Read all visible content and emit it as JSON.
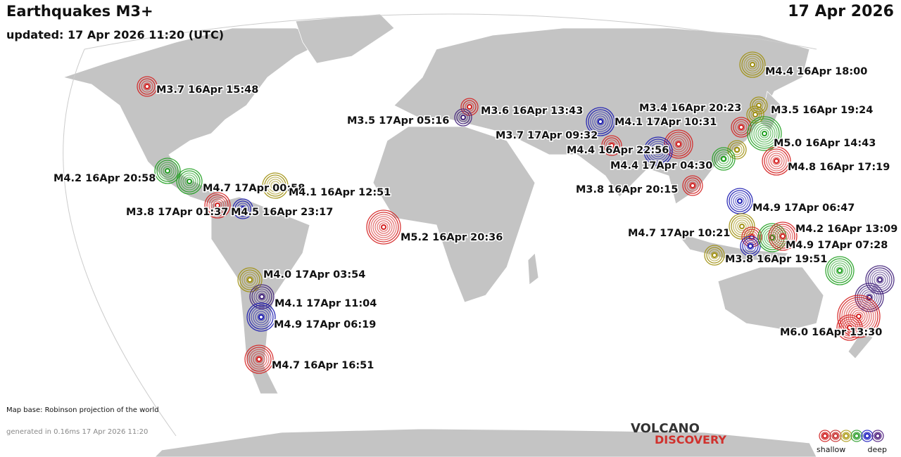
{
  "header": {
    "title": "Earthquakes M3+",
    "updated": "updated: 17 Apr 2026 11:20 (UTC)",
    "date": "17 Apr 2026"
  },
  "footer": {
    "map_base": "Map base: Robinson projection of the world",
    "generated": "generated in 0.16ms 17 Apr 2026 11:20"
  },
  "logo": {
    "line1": "VOLCANO",
    "line2": "DISCOVERY"
  },
  "legend": {
    "shallow": "shallow",
    "deep": "deep",
    "colors": [
      "#d02020",
      "#c83030",
      "#b0a020",
      "#30a030",
      "#2020c0",
      "#502080"
    ]
  },
  "depth_colors": {
    "red": "#d42020",
    "olive": "#a09010",
    "green": "#20a020",
    "blue": "#1a1ab0",
    "purple": "#40207a"
  },
  "quakes": [
    {
      "label": "M3.7 16Apr 15:48",
      "depth": "red"
    },
    {
      "label": "M4.2 16Apr 20:58",
      "depth": "green"
    },
    {
      "label": "M4.7 17Apr 00:58",
      "depth": "green"
    },
    {
      "label": "M4.1 16Apr 12:51",
      "depth": "olive"
    },
    {
      "label": "M3.8 17Apr 01:37",
      "depth": "red"
    },
    {
      "label": "M4.5 16Apr 23:17",
      "depth": "blue"
    },
    {
      "label": "M5.2 16Apr 20:36",
      "depth": "red"
    },
    {
      "label": "M4.0 17Apr 03:54",
      "depth": "olive"
    },
    {
      "label": "M4.1 17Apr 11:04",
      "depth": "purple"
    },
    {
      "label": "M4.9 17Apr 06:19",
      "depth": "blue"
    },
    {
      "label": "M4.7 16Apr 16:51",
      "depth": "red"
    },
    {
      "label": "M3.6 16Apr 13:43",
      "depth": "red"
    },
    {
      "label": "M3.5 17Apr 05:16",
      "depth": "purple"
    },
    {
      "label": "M4.1 17Apr 10:31",
      "depth": "blue"
    },
    {
      "label": "M3.7 17Apr 09:32",
      "depth": "red"
    },
    {
      "label": "M4.4 16Apr 22:56",
      "depth": "red"
    },
    {
      "label": "M4.4 17Apr 04:30",
      "depth": "blue"
    },
    {
      "label": "M3.8 16Apr 20:15",
      "depth": "red"
    },
    {
      "label": "M4.4 16Apr 18:00",
      "depth": "olive"
    },
    {
      "label": "M3.5 16Apr 19:24",
      "depth": "olive"
    },
    {
      "label": "M3.4 16Apr 20:23",
      "depth": "olive"
    },
    {
      "label": "",
      "depth": "red"
    },
    {
      "label": "M5.0 16Apr 14:43",
      "depth": "green"
    },
    {
      "label": "",
      "depth": "olive"
    },
    {
      "label": "",
      "depth": "green"
    },
    {
      "label": "M4.8 16Apr 17:19",
      "depth": "red"
    },
    {
      "label": "M4.9 17Apr 06:47",
      "depth": "blue"
    },
    {
      "label": "M4.7 17Apr 10:21",
      "depth": "olive"
    },
    {
      "label": "",
      "depth": "red"
    },
    {
      "label": "",
      "depth": "blue"
    },
    {
      "label": "M4.2 16Apr 13:09",
      "depth": "green"
    },
    {
      "label": "M4.9 17Apr 07:28",
      "depth": "red"
    },
    {
      "label": "M3.8 16Apr 19:51",
      "depth": "olive"
    },
    {
      "label": "",
      "depth": "green"
    },
    {
      "label": "",
      "depth": "purple"
    },
    {
      "label": "",
      "depth": "purple"
    },
    {
      "label": "M6.0 16Apr 13:30",
      "depth": "red"
    },
    {
      "label": "",
      "depth": "red"
    }
  ]
}
